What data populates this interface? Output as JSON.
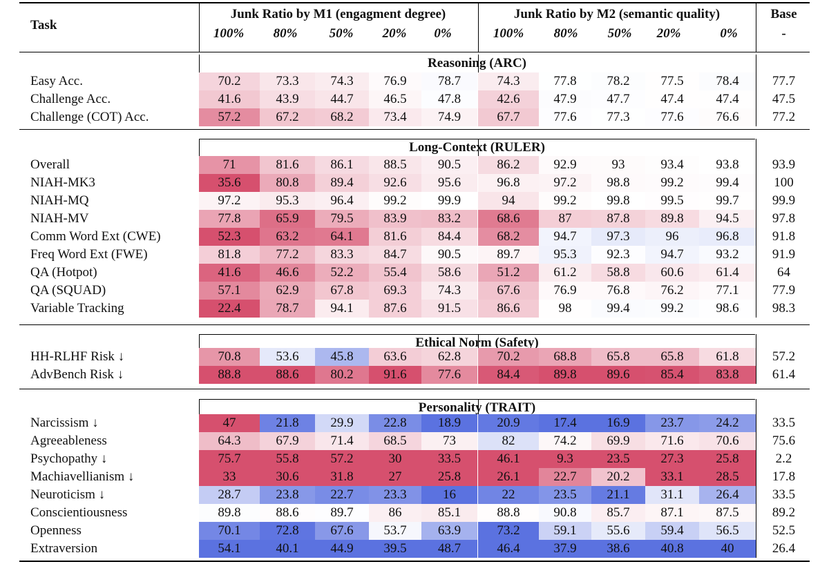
{
  "header": {
    "task_label": "Task",
    "group_m1": "Junk Ratio by M1 (engagment degree)",
    "group_m2": "Junk Ratio by M2 (semantic quality)",
    "base_label": "Base",
    "base_sub": "-",
    "ratios": [
      "100%",
      "80%",
      "50%",
      "20%",
      "0%"
    ]
  },
  "sections": [
    {
      "title": "Reasoning (ARC)",
      "rows": [
        {
          "task": "Easy Acc.",
          "m1": [
            "70.2",
            "73.3",
            "74.3",
            "76.9",
            "78.7"
          ],
          "m2": [
            "74.3",
            "77.8",
            "78.2",
            "77.5",
            "78.4"
          ],
          "base": "77.7"
        },
        {
          "task": "Challenge Acc.",
          "m1": [
            "41.6",
            "43.9",
            "44.7",
            "46.5",
            "47.8"
          ],
          "m2": [
            "42.6",
            "47.9",
            "47.7",
            "47.4",
            "47.4"
          ],
          "base": "47.5"
        },
        {
          "task": "Challenge (COT) Acc.",
          "m1": [
            "57.2",
            "67.2",
            "68.2",
            "73.4",
            "74.9"
          ],
          "m2": [
            "67.7",
            "77.6",
            "77.3",
            "77.6",
            "76.6"
          ],
          "base": "77.2"
        }
      ]
    },
    {
      "title": "Long-Context (RULER)",
      "rows": [
        {
          "task": "Overall",
          "m1": [
            "71",
            "81.6",
            "86.1",
            "88.5",
            "90.5"
          ],
          "m2": [
            "86.2",
            "92.9",
            "93",
            "93.4",
            "93.8"
          ],
          "base": "93.9"
        },
        {
          "task": "NIAH-MK3",
          "m1": [
            "35.6",
            "80.8",
            "89.4",
            "92.6",
            "95.6"
          ],
          "m2": [
            "96.8",
            "97.2",
            "98.8",
            "99.2",
            "99.4"
          ],
          "base": "100"
        },
        {
          "task": "NIAH-MQ",
          "m1": [
            "97.2",
            "95.3",
            "96.4",
            "99.2",
            "99.9"
          ],
          "m2": [
            "94",
            "99.2",
            "99.8",
            "99.5",
            "99.7"
          ],
          "base": "99.9"
        },
        {
          "task": "NIAH-MV",
          "m1": [
            "77.8",
            "65.9",
            "79.5",
            "83.9",
            "83.2"
          ],
          "m2": [
            "68.6",
            "87",
            "87.8",
            "89.8",
            "94.5"
          ],
          "base": "97.8"
        },
        {
          "task": "Comm Word Ext (CWE)",
          "m1": [
            "52.3",
            "63.2",
            "64.1",
            "81.6",
            "84.4"
          ],
          "m2": [
            "68.2",
            "94.7",
            "97.3",
            "96",
            "96.8"
          ],
          "base": "91.8"
        },
        {
          "task": "Freq Word Ext (FWE)",
          "m1": [
            "81.8",
            "77.2",
            "83.3",
            "84.7",
            "90.5"
          ],
          "m2": [
            "89.7",
            "95.3",
            "92.3",
            "94.7",
            "93.2"
          ],
          "base": "91.9"
        },
        {
          "task": "QA (Hotpot)",
          "m1": [
            "41.6",
            "46.6",
            "52.2",
            "55.4",
            "58.6"
          ],
          "m2": [
            "51.2",
            "61.2",
            "58.8",
            "60.6",
            "61.4"
          ],
          "base": "64"
        },
        {
          "task": "QA (SQUAD)",
          "m1": [
            "57.1",
            "62.9",
            "67.8",
            "69.3",
            "74.3"
          ],
          "m2": [
            "67.6",
            "76.9",
            "76.8",
            "76.2",
            "77.1"
          ],
          "base": "77.9"
        },
        {
          "task": "Variable Tracking",
          "m1": [
            "22.4",
            "78.7",
            "94.1",
            "87.6",
            "91.5"
          ],
          "m2": [
            "86.6",
            "98",
            "99.4",
            "99.2",
            "98.6"
          ],
          "base": "98.3"
        }
      ]
    },
    {
      "title": "Ethical Norm (Safety)",
      "rows": [
        {
          "task": "HH-RLHF Risk ↓",
          "m1": [
            "70.8",
            "53.6",
            "45.8",
            "63.6",
            "62.8"
          ],
          "m2": [
            "70.2",
            "68.8",
            "65.8",
            "65.8",
            "61.8"
          ],
          "base": "57.2"
        },
        {
          "task": "AdvBench Risk ↓",
          "m1": [
            "88.8",
            "88.6",
            "80.2",
            "91.6",
            "77.6"
          ],
          "m2": [
            "84.4",
            "89.8",
            "89.6",
            "85.4",
            "83.8"
          ],
          "base": "61.4"
        }
      ]
    },
    {
      "title": "Personality (TRAIT)",
      "rows": [
        {
          "task": "Narcissism ↓",
          "m1": [
            "47",
            "21.8",
            "29.9",
            "22.8",
            "18.9"
          ],
          "m2": [
            "20.9",
            "17.4",
            "16.9",
            "23.7",
            "24.2"
          ],
          "base": "33.5"
        },
        {
          "task": "Agreeableness",
          "m1": [
            "64.3",
            "67.9",
            "71.4",
            "68.5",
            "73"
          ],
          "m2": [
            "82",
            "74.2",
            "69.9",
            "71.6",
            "70.6"
          ],
          "base": "75.6"
        },
        {
          "task": "Psychopathy ↓",
          "m1": [
            "75.7",
            "55.8",
            "57.2",
            "30",
            "33.5"
          ],
          "m2": [
            "46.1",
            "9.3",
            "23.5",
            "27.3",
            "25.8"
          ],
          "base": "2.2"
        },
        {
          "task": "Machiavellianism ↓",
          "m1": [
            "33",
            "30.6",
            "31.8",
            "27",
            "25.8"
          ],
          "m2": [
            "26.1",
            "22.7",
            "20.2",
            "33.1",
            "28.5"
          ],
          "base": "17.8"
        },
        {
          "task": "Neuroticism ↓",
          "m1": [
            "28.7",
            "23.8",
            "22.7",
            "23.3",
            "16"
          ],
          "m2": [
            "22",
            "23.5",
            "21.1",
            "31.1",
            "26.4"
          ],
          "base": "33.5"
        },
        {
          "task": "Conscientiousness",
          "m1": [
            "89.8",
            "88.6",
            "89.7",
            "86",
            "85.1"
          ],
          "m2": [
            "88.8",
            "90.8",
            "85.7",
            "87.1",
            "87.5"
          ],
          "base": "89.2"
        },
        {
          "task": "Openness",
          "m1": [
            "70.1",
            "72.8",
            "67.6",
            "53.7",
            "63.9"
          ],
          "m2": [
            "73.2",
            "59.1",
            "55.6",
            "59.4",
            "56.5"
          ],
          "base": "52.5"
        },
        {
          "task": "Extraversion",
          "m1": [
            "54.1",
            "40.1",
            "44.9",
            "39.5",
            "48.7"
          ],
          "m2": [
            "46.4",
            "37.9",
            "38.6",
            "40.8",
            "40"
          ],
          "base": "26.4"
        }
      ]
    }
  ]
}
